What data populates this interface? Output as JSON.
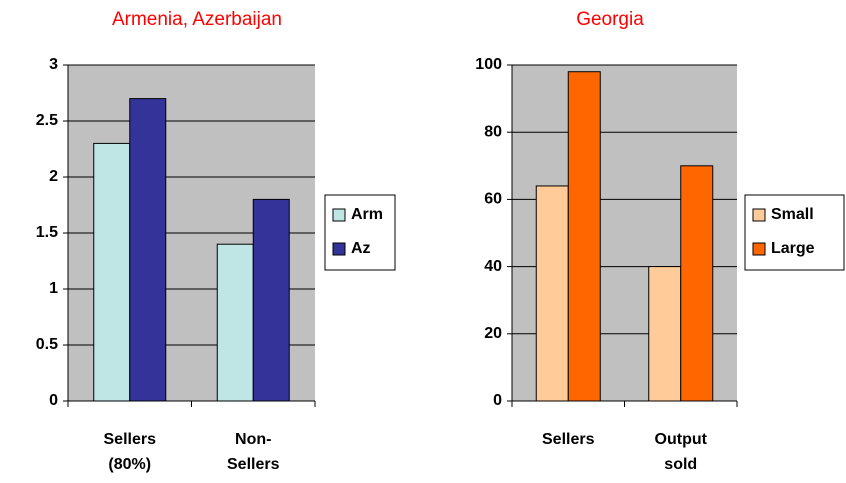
{
  "chart_data": [
    {
      "type": "bar",
      "title": "Armenia, Azerbaijan",
      "categories": [
        [
          "Sellers",
          "(80%)"
        ],
        [
          "Non-",
          "Sellers"
        ]
      ],
      "series": [
        {
          "name": "Arm",
          "color": "#bfe5e5",
          "values": [
            2.3,
            1.4
          ]
        },
        {
          "name": "Az",
          "color": "#333399",
          "values": [
            2.7,
            1.8
          ]
        }
      ],
      "ylim": [
        0,
        3
      ],
      "yticks": [
        0,
        0.5,
        1,
        1.5,
        2,
        2.5,
        3
      ],
      "grid": true,
      "legend": "right"
    },
    {
      "type": "bar",
      "title": "Georgia",
      "categories": [
        [
          "Sellers"
        ],
        [
          "Output",
          "sold"
        ]
      ],
      "series": [
        {
          "name": "Small",
          "color": "#ffcc99",
          "values": [
            64,
            40
          ]
        },
        {
          "name": "Large",
          "color": "#ff6600",
          "values": [
            98,
            70
          ]
        }
      ],
      "ylim": [
        0,
        100
      ],
      "yticks": [
        0,
        20,
        40,
        60,
        80,
        100
      ],
      "grid": true,
      "legend": "right"
    }
  ]
}
